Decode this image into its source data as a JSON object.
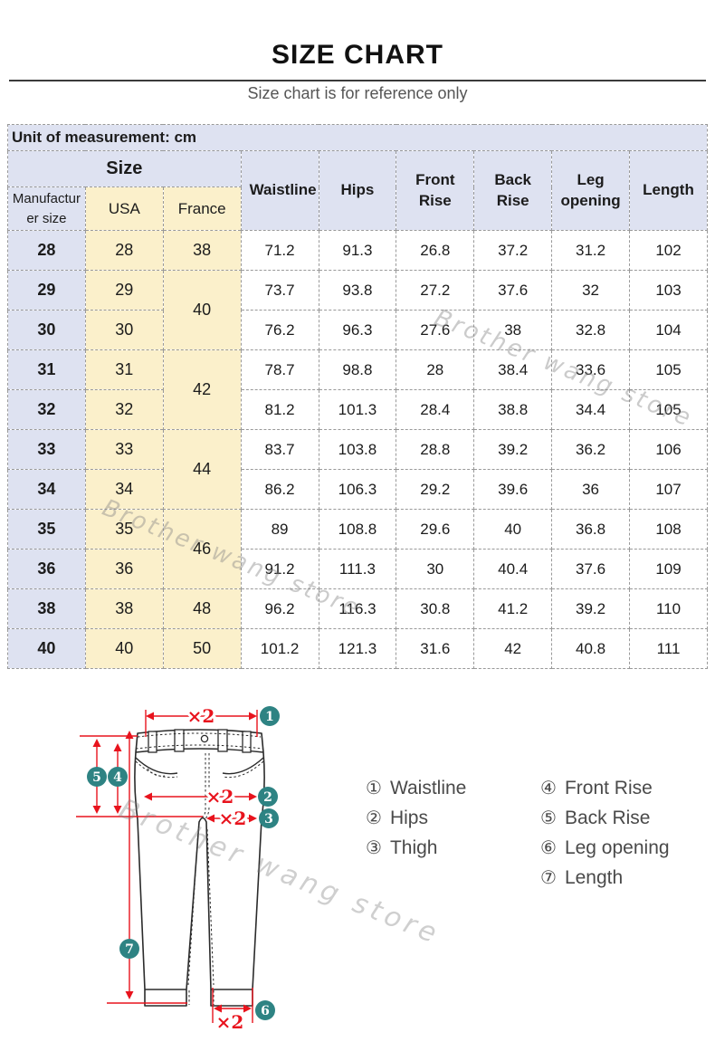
{
  "page": {
    "title": "SIZE CHART",
    "subtitle": "Size chart is for reference only"
  },
  "watermark": {
    "text": "Brother wang store"
  },
  "table": {
    "unit_note": "Unit of measurement: cm",
    "size_group_label": "Size",
    "col_headers": {
      "manufacturer": "Manufacturer size",
      "usa": "USA",
      "france": "France",
      "measures": [
        "Waistline",
        "Hips",
        "Front Rise",
        "Back Rise",
        "Leg opening",
        "Length"
      ]
    },
    "rows": [
      {
        "manufacturer": "28",
        "usa": "28",
        "france": "38",
        "france_rowspan": 1,
        "values": [
          "71.2",
          "91.3",
          "26.8",
          "37.2",
          "31.2",
          "102"
        ]
      },
      {
        "manufacturer": "29",
        "usa": "29",
        "france": "40",
        "france_rowspan": 2,
        "values": [
          "73.7",
          "93.8",
          "27.2",
          "37.6",
          "32",
          "103"
        ]
      },
      {
        "manufacturer": "30",
        "usa": "30",
        "values": [
          "76.2",
          "96.3",
          "27.6",
          "38",
          "32.8",
          "104"
        ]
      },
      {
        "manufacturer": "31",
        "usa": "31",
        "france": "42",
        "france_rowspan": 2,
        "values": [
          "78.7",
          "98.8",
          "28",
          "38.4",
          "33.6",
          "105"
        ]
      },
      {
        "manufacturer": "32",
        "usa": "32",
        "values": [
          "81.2",
          "101.3",
          "28.4",
          "38.8",
          "34.4",
          "105"
        ]
      },
      {
        "manufacturer": "33",
        "usa": "33",
        "france": "44",
        "france_rowspan": 2,
        "values": [
          "83.7",
          "103.8",
          "28.8",
          "39.2",
          "36.2",
          "106"
        ]
      },
      {
        "manufacturer": "34",
        "usa": "34",
        "values": [
          "86.2",
          "106.3",
          "29.2",
          "39.6",
          "36",
          "107"
        ]
      },
      {
        "manufacturer": "35",
        "usa": "35",
        "france": "46",
        "france_rowspan": 2,
        "values": [
          "89",
          "108.8",
          "29.6",
          "40",
          "36.8",
          "108"
        ]
      },
      {
        "manufacturer": "36",
        "usa": "36",
        "values": [
          "91.2",
          "111.3",
          "30",
          "40.4",
          "37.6",
          "109"
        ]
      },
      {
        "manufacturer": "38",
        "usa": "38",
        "france": "48",
        "france_rowspan": 1,
        "values": [
          "96.2",
          "116.3",
          "30.8",
          "41.2",
          "39.2",
          "110"
        ]
      },
      {
        "manufacturer": "40",
        "usa": "40",
        "france": "50",
        "france_rowspan": 1,
        "values": [
          "101.2",
          "121.3",
          "31.6",
          "42",
          "40.8",
          "111"
        ]
      }
    ]
  },
  "diagram": {
    "multiplier_label": "×2",
    "badges": [
      "1",
      "2",
      "3",
      "4",
      "5",
      "6",
      "7"
    ],
    "legend": {
      "col1": [
        {
          "num": "①",
          "label": "Waistline"
        },
        {
          "num": "②",
          "label": "Hips"
        },
        {
          "num": "③",
          "label": "Thigh"
        }
      ],
      "col2": [
        {
          "num": "④",
          "label": "Front Rise"
        },
        {
          "num": "⑤",
          "label": "Back Rise"
        },
        {
          "num": "⑥",
          "label": "Leg opening"
        },
        {
          "num": "⑦",
          "label": "Length"
        }
      ]
    }
  },
  "colors": {
    "accent_red": "#e8131d",
    "badge_teal": "#2e8383",
    "header_lavender": "#dee2f1",
    "cell_cream": "#fbf0cb"
  }
}
